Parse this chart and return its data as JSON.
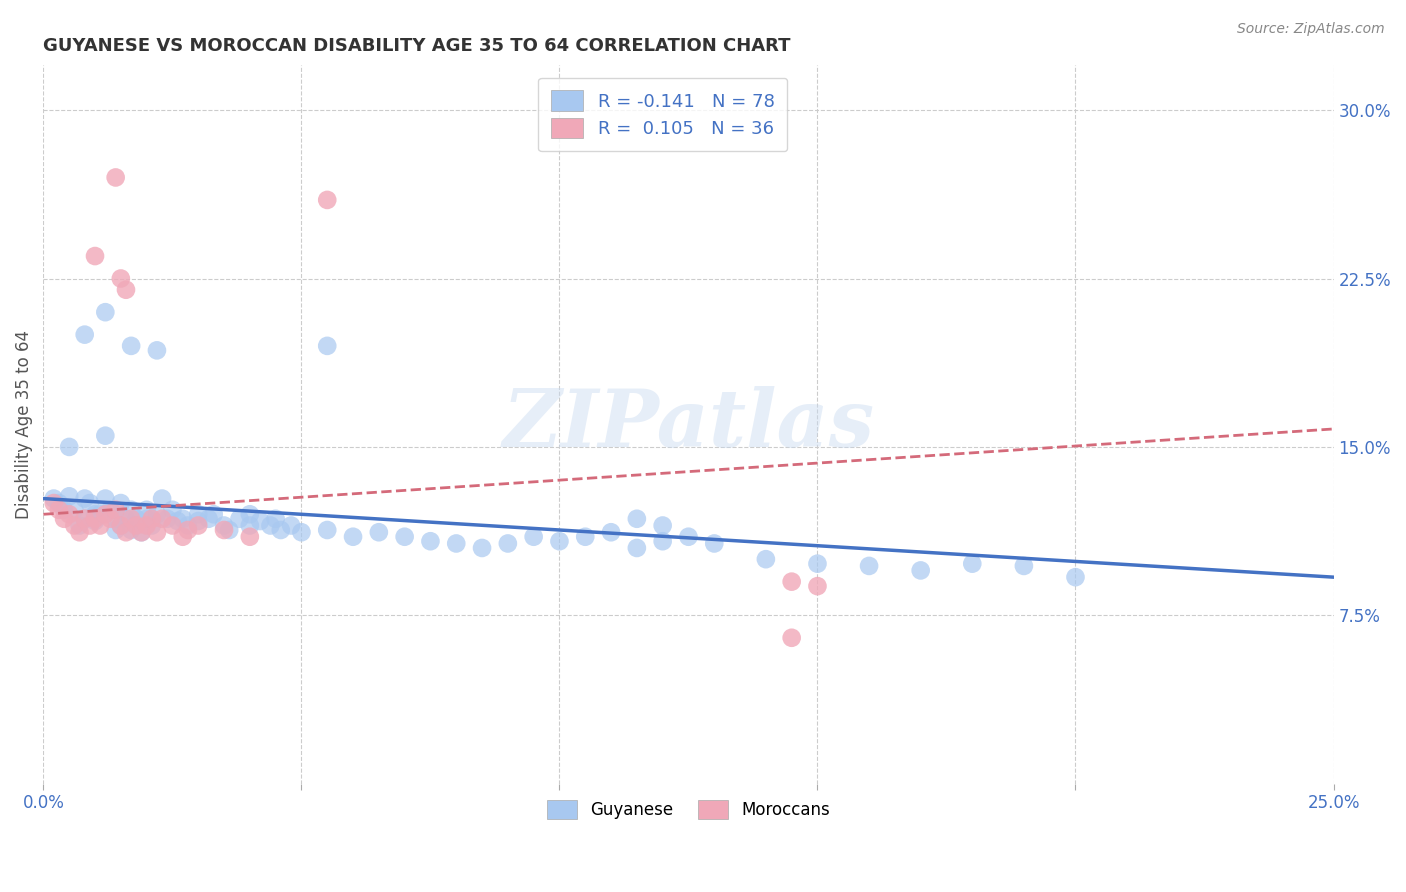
{
  "title": "GUYANESE VS MOROCCAN DISABILITY AGE 35 TO 64 CORRELATION CHART",
  "source": "Source: ZipAtlas.com",
  "ylabel": "Disability Age 35 to 64",
  "xlim": [
    0.0,
    0.25
  ],
  "ylim": [
    0.0,
    0.32
  ],
  "yticks": [
    0.075,
    0.15,
    0.225,
    0.3
  ],
  "yticklabels": [
    "7.5%",
    "15.0%",
    "22.5%",
    "30.0%"
  ],
  "blue_color": "#a8c8f0",
  "pink_color": "#f0a8b8",
  "trend_blue": "#4472c4",
  "trend_pink": "#d46a7a",
  "watermark": "ZIPatlas",
  "guyanese_trend_x": [
    0.0,
    0.25
  ],
  "guyanese_trend_y": [
    0.127,
    0.092
  ],
  "moroccan_trend_x": [
    0.0,
    0.25
  ],
  "moroccan_trend_y": [
    0.12,
    0.158
  ],
  "guyanese_scatter": [
    [
      0.002,
      0.127
    ],
    [
      0.003,
      0.125
    ],
    [
      0.004,
      0.122
    ],
    [
      0.005,
      0.15
    ],
    [
      0.005,
      0.128
    ],
    [
      0.006,
      0.122
    ],
    [
      0.007,
      0.115
    ],
    [
      0.008,
      0.127
    ],
    [
      0.008,
      0.118
    ],
    [
      0.009,
      0.125
    ],
    [
      0.01,
      0.12
    ],
    [
      0.01,
      0.117
    ],
    [
      0.011,
      0.12
    ],
    [
      0.012,
      0.155
    ],
    [
      0.012,
      0.127
    ],
    [
      0.013,
      0.122
    ],
    [
      0.014,
      0.118
    ],
    [
      0.014,
      0.113
    ],
    [
      0.015,
      0.125
    ],
    [
      0.015,
      0.115
    ],
    [
      0.016,
      0.118
    ],
    [
      0.017,
      0.122
    ],
    [
      0.017,
      0.113
    ],
    [
      0.018,
      0.118
    ],
    [
      0.019,
      0.112
    ],
    [
      0.02,
      0.122
    ],
    [
      0.02,
      0.118
    ],
    [
      0.021,
      0.115
    ],
    [
      0.022,
      0.12
    ],
    [
      0.023,
      0.127
    ],
    [
      0.024,
      0.118
    ],
    [
      0.025,
      0.122
    ],
    [
      0.026,
      0.117
    ],
    [
      0.027,
      0.118
    ],
    [
      0.028,
      0.115
    ],
    [
      0.03,
      0.12
    ],
    [
      0.03,
      0.117
    ],
    [
      0.032,
      0.118
    ],
    [
      0.033,
      0.12
    ],
    [
      0.035,
      0.115
    ],
    [
      0.036,
      0.113
    ],
    [
      0.038,
      0.118
    ],
    [
      0.04,
      0.12
    ],
    [
      0.04,
      0.115
    ],
    [
      0.042,
      0.117
    ],
    [
      0.044,
      0.115
    ],
    [
      0.045,
      0.118
    ],
    [
      0.046,
      0.113
    ],
    [
      0.048,
      0.115
    ],
    [
      0.05,
      0.112
    ],
    [
      0.055,
      0.113
    ],
    [
      0.06,
      0.11
    ],
    [
      0.065,
      0.112
    ],
    [
      0.07,
      0.11
    ],
    [
      0.075,
      0.108
    ],
    [
      0.08,
      0.107
    ],
    [
      0.085,
      0.105
    ],
    [
      0.09,
      0.107
    ],
    [
      0.095,
      0.11
    ],
    [
      0.1,
      0.108
    ],
    [
      0.105,
      0.11
    ],
    [
      0.11,
      0.112
    ],
    [
      0.115,
      0.105
    ],
    [
      0.12,
      0.108
    ],
    [
      0.125,
      0.11
    ],
    [
      0.13,
      0.107
    ],
    [
      0.14,
      0.1
    ],
    [
      0.15,
      0.098
    ],
    [
      0.16,
      0.097
    ],
    [
      0.17,
      0.095
    ],
    [
      0.18,
      0.098
    ],
    [
      0.19,
      0.097
    ],
    [
      0.008,
      0.2
    ],
    [
      0.012,
      0.21
    ],
    [
      0.017,
      0.195
    ],
    [
      0.022,
      0.193
    ],
    [
      0.055,
      0.195
    ],
    [
      0.115,
      0.118
    ],
    [
      0.12,
      0.115
    ],
    [
      0.2,
      0.092
    ]
  ],
  "moroccan_scatter": [
    [
      0.002,
      0.125
    ],
    [
      0.003,
      0.122
    ],
    [
      0.004,
      0.118
    ],
    [
      0.005,
      0.12
    ],
    [
      0.006,
      0.115
    ],
    [
      0.007,
      0.112
    ],
    [
      0.008,
      0.118
    ],
    [
      0.009,
      0.115
    ],
    [
      0.01,
      0.118
    ],
    [
      0.011,
      0.115
    ],
    [
      0.012,
      0.12
    ],
    [
      0.013,
      0.118
    ],
    [
      0.014,
      0.122
    ],
    [
      0.015,
      0.115
    ],
    [
      0.016,
      0.112
    ],
    [
      0.017,
      0.118
    ],
    [
      0.018,
      0.115
    ],
    [
      0.019,
      0.112
    ],
    [
      0.02,
      0.115
    ],
    [
      0.021,
      0.118
    ],
    [
      0.022,
      0.112
    ],
    [
      0.023,
      0.118
    ],
    [
      0.025,
      0.115
    ],
    [
      0.027,
      0.11
    ],
    [
      0.028,
      0.113
    ],
    [
      0.03,
      0.115
    ],
    [
      0.035,
      0.113
    ],
    [
      0.04,
      0.11
    ],
    [
      0.01,
      0.235
    ],
    [
      0.014,
      0.27
    ],
    [
      0.015,
      0.225
    ],
    [
      0.016,
      0.22
    ],
    [
      0.055,
      0.26
    ],
    [
      0.145,
      0.065
    ],
    [
      0.145,
      0.09
    ],
    [
      0.15,
      0.088
    ]
  ]
}
